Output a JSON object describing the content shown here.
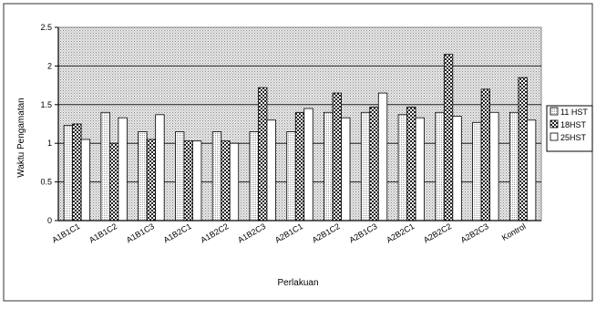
{
  "chart_data": {
    "type": "bar",
    "title": "",
    "xlabel": "Perlakuan",
    "ylabel": "Waktu Pengamatan",
    "ylim": [
      0,
      2.5
    ],
    "yticks": [
      "0",
      "0.5",
      "1",
      "1.5",
      "2",
      "2.5"
    ],
    "grid": true,
    "legend_position": "right",
    "categories": [
      "A1B1C1",
      "A1B1C2",
      "A1B1C3",
      "A1B2C1",
      "A1B2C2",
      "A1B2C3",
      "A2B1C1",
      "A2B1C2",
      "A2B1C3",
      "A2B2C1",
      "A2B2C2",
      "A2B2C3",
      "Kontrol"
    ],
    "series": [
      {
        "name": "11 HST",
        "values": [
          1.23,
          1.4,
          1.15,
          1.15,
          1.15,
          1.15,
          1.15,
          1.4,
          1.4,
          1.37,
          1.4,
          1.27,
          1.4
        ]
      },
      {
        "name": "18HST",
        "values": [
          1.25,
          1.0,
          1.05,
          1.03,
          1.03,
          1.72,
          1.4,
          1.65,
          1.47,
          1.47,
          2.15,
          1.7,
          1.85
        ]
      },
      {
        "name": "25HST",
        "values": [
          1.05,
          1.33,
          1.37,
          1.03,
          1.0,
          1.3,
          1.45,
          1.33,
          1.65,
          1.33,
          1.35,
          1.4,
          1.3
        ]
      }
    ]
  },
  "colors": {
    "plot_background": "#d0d0d0",
    "series": [
      "#f2f2f2",
      "#555555",
      "#ffffff"
    ],
    "axis": "#000000",
    "border": "#333333"
  }
}
